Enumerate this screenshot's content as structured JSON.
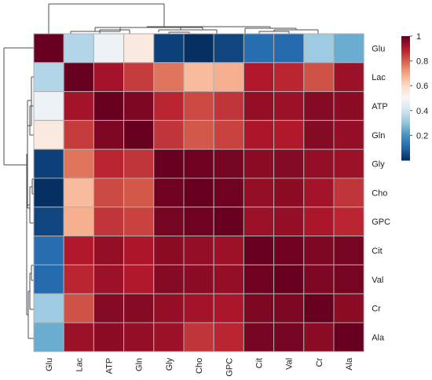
{
  "chart_data": {
    "type": "heatmap",
    "rows": [
      "Glu",
      "Lac",
      "ATP",
      "Gln",
      "Gly",
      "Cho",
      "GPC",
      "Cit",
      "Val",
      "Cr",
      "Ala"
    ],
    "columns": [
      "Glu",
      "Lac",
      "ATP",
      "Gln",
      "Gly",
      "Cho",
      "GPC",
      "Cit",
      "Val",
      "Cr",
      "Ala"
    ],
    "values": [
      [
        1.0,
        0.35,
        0.47,
        0.55,
        0.03,
        0.0,
        0.04,
        0.12,
        0.11,
        0.32,
        0.25
      ],
      [
        0.35,
        1.0,
        0.92,
        0.85,
        0.77,
        0.66,
        0.68,
        0.9,
        0.88,
        0.82,
        0.93
      ],
      [
        0.47,
        0.92,
        1.0,
        0.97,
        0.88,
        0.83,
        0.86,
        0.94,
        0.93,
        0.96,
        0.95
      ],
      [
        0.55,
        0.85,
        0.97,
        1.0,
        0.86,
        0.81,
        0.84,
        0.91,
        0.9,
        0.96,
        0.94
      ],
      [
        0.03,
        0.77,
        0.88,
        0.86,
        1.0,
        0.99,
        0.98,
        0.95,
        0.96,
        0.94,
        0.93
      ],
      [
        0.0,
        0.66,
        0.83,
        0.81,
        0.99,
        1.0,
        0.99,
        0.94,
        0.95,
        0.92,
        0.86
      ],
      [
        0.04,
        0.68,
        0.86,
        0.84,
        0.98,
        0.99,
        1.0,
        0.93,
        0.94,
        0.91,
        0.88
      ],
      [
        0.12,
        0.9,
        0.94,
        0.91,
        0.95,
        0.94,
        0.93,
        1.0,
        0.99,
        0.97,
        0.98
      ],
      [
        0.11,
        0.88,
        0.93,
        0.9,
        0.96,
        0.95,
        0.94,
        0.99,
        1.0,
        0.97,
        0.98
      ],
      [
        0.32,
        0.82,
        0.96,
        0.96,
        0.94,
        0.92,
        0.91,
        0.97,
        0.97,
        1.0,
        0.95
      ],
      [
        0.25,
        0.93,
        0.95,
        0.94,
        0.93,
        0.86,
        0.88,
        0.98,
        0.98,
        0.95,
        1.0
      ]
    ],
    "colorbar": {
      "ticks": [
        "1",
        "0.8",
        "0.6",
        "0.4",
        "0.2"
      ],
      "tick_values": [
        1,
        0.8,
        0.6,
        0.4,
        0.2
      ],
      "range": [
        0,
        1
      ]
    },
    "colorscale": [
      "#053061",
      "#2166ac",
      "#4393c3",
      "#92c5de",
      "#d1e5f0",
      "#f7f7f7",
      "#fddbc7",
      "#f4a582",
      "#d6604d",
      "#b2182b",
      "#67001f"
    ],
    "dendrogram": "row and column clustering trees"
  }
}
